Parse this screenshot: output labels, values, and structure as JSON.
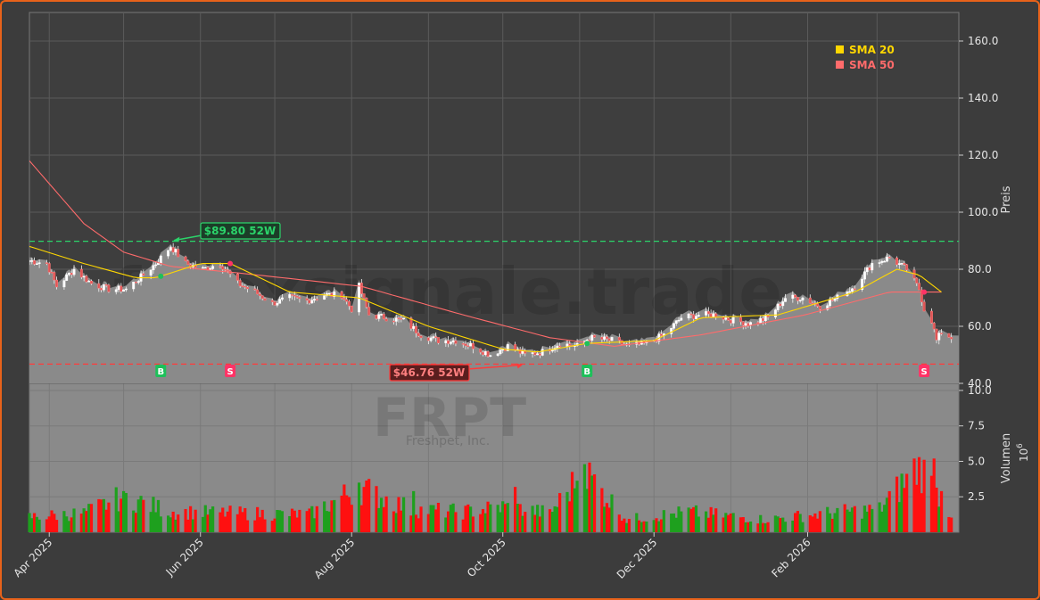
{
  "chart_data": {
    "type": "candlestick",
    "watermark": {
      "line1": "forexsignale.trade",
      "line2": "FRPT",
      "line3": "Freshpet, Inc."
    },
    "price_axis": {
      "label": "Preis",
      "ylim": [
        40,
        170
      ],
      "ticks": [
        "40.0",
        "60.0",
        "80.0",
        "100.0",
        "120.0",
        "140.0",
        "160.0"
      ]
    },
    "volume_axis": {
      "label": "Volumen",
      "exponent_label": "10",
      "exponent_power": "6",
      "ylim": [
        0,
        10.5
      ],
      "ticks": [
        "2.5",
        "5.0",
        "7.5",
        "10.0"
      ]
    },
    "x_axis": {
      "ticks": [
        "Apr 2025",
        "Jun 2025",
        "Aug 2025",
        "Oct 2025",
        "Dec 2025",
        "Feb 2026"
      ]
    },
    "legend": {
      "position": "top-right",
      "sma20": "SMA 20",
      "sma50": "SMA 50",
      "sma20_color": "#ffd700",
      "sma50_color": "#ff6b6b"
    },
    "high_52w": {
      "value": 89.8,
      "label": "$89.80 52W",
      "color": "#2bd46a"
    },
    "low_52w": {
      "value": 46.76,
      "label": "$46.76 52W",
      "color": "#ff3b3b"
    },
    "signals": [
      {
        "type": "buy",
        "label": "B",
        "date": "2025-05-16"
      },
      {
        "type": "sell",
        "label": "S",
        "date": "2025-06-13"
      },
      {
        "type": "buy",
        "label": "B",
        "date": "2025-11-04"
      },
      {
        "type": "sell",
        "label": "S",
        "date": "2026-03-20"
      }
    ],
    "price_keypoints": [
      [
        "2025-03-24",
        83
      ],
      [
        "2025-03-31",
        82
      ],
      [
        "2025-04-04",
        74
      ],
      [
        "2025-04-11",
        80
      ],
      [
        "2025-04-18",
        75
      ],
      [
        "2025-04-25",
        73
      ],
      [
        "2025-05-02",
        73
      ],
      [
        "2025-05-09",
        78
      ],
      [
        "2025-05-14",
        82
      ],
      [
        "2025-05-20",
        88
      ],
      [
        "2025-05-26",
        82
      ],
      [
        "2025-06-02",
        80
      ],
      [
        "2025-06-09",
        82
      ],
      [
        "2025-06-16",
        75
      ],
      [
        "2025-06-23",
        72
      ],
      [
        "2025-06-30",
        68
      ],
      [
        "2025-07-07",
        70
      ],
      [
        "2025-07-14",
        69
      ],
      [
        "2025-07-21",
        71
      ],
      [
        "2025-07-28",
        71
      ],
      [
        "2025-08-01",
        66
      ],
      [
        "2025-08-04",
        74
      ],
      [
        "2025-08-08",
        64
      ],
      [
        "2025-08-15",
        63
      ],
      [
        "2025-08-22",
        62
      ],
      [
        "2025-08-29",
        57
      ],
      [
        "2025-09-05",
        55
      ],
      [
        "2025-09-12",
        55
      ],
      [
        "2025-09-19",
        53
      ],
      [
        "2025-09-26",
        50
      ],
      [
        "2025-10-03",
        53
      ],
      [
        "2025-10-10",
        50
      ],
      [
        "2025-10-17",
        51
      ],
      [
        "2025-10-24",
        54
      ],
      [
        "2025-10-31",
        53
      ],
      [
        "2025-11-05",
        56
      ],
      [
        "2025-11-14",
        55
      ],
      [
        "2025-11-21",
        53
      ],
      [
        "2025-11-28",
        54
      ],
      [
        "2025-12-05",
        57
      ],
      [
        "2025-12-12",
        63
      ],
      [
        "2025-12-19",
        64
      ],
      [
        "2025-12-26",
        64
      ],
      [
        "2026-01-02",
        62
      ],
      [
        "2026-01-09",
        61
      ],
      [
        "2026-01-16",
        63
      ],
      [
        "2026-01-23",
        70
      ],
      [
        "2026-01-30",
        70
      ],
      [
        "2026-02-06",
        67
      ],
      [
        "2026-02-13",
        70
      ],
      [
        "2026-02-20",
        74
      ],
      [
        "2026-02-27",
        82
      ],
      [
        "2026-03-06",
        84
      ],
      [
        "2026-03-13",
        80
      ],
      [
        "2026-03-18",
        73
      ],
      [
        "2026-03-20",
        66
      ],
      [
        "2026-03-23",
        62
      ],
      [
        "2026-03-25",
        55
      ],
      [
        "2026-03-27",
        58
      ],
      [
        "2026-03-31",
        56
      ]
    ],
    "sma20_keypoints": [
      [
        "2025-03-24",
        88
      ],
      [
        "2025-04-15",
        82
      ],
      [
        "2025-05-06",
        77
      ],
      [
        "2025-05-14",
        77
      ],
      [
        "2025-06-01",
        82
      ],
      [
        "2025-06-13",
        82
      ],
      [
        "2025-07-07",
        72
      ],
      [
        "2025-08-04",
        70
      ],
      [
        "2025-09-01",
        60
      ],
      [
        "2025-10-01",
        52
      ],
      [
        "2025-10-15",
        51
      ],
      [
        "2025-11-04",
        54
      ],
      [
        "2025-12-01",
        55
      ],
      [
        "2025-12-20",
        63
      ],
      [
        "2026-01-20",
        64
      ],
      [
        "2026-02-20",
        72
      ],
      [
        "2026-03-09",
        80
      ],
      [
        "2026-03-18",
        78
      ],
      [
        "2026-03-27",
        72
      ]
    ],
    "sma50_keypoints": [
      [
        "2025-03-24",
        118
      ],
      [
        "2025-04-15",
        96
      ],
      [
        "2025-05-01",
        86
      ],
      [
        "2025-05-20",
        81
      ],
      [
        "2025-06-13",
        79
      ],
      [
        "2025-07-15",
        76
      ],
      [
        "2025-08-05",
        74
      ],
      [
        "2025-09-15",
        64
      ],
      [
        "2025-10-20",
        56
      ],
      [
        "2025-11-15",
        53
      ],
      [
        "2025-12-20",
        57
      ],
      [
        "2026-01-31",
        64
      ],
      [
        "2026-03-06",
        72
      ],
      [
        "2026-03-27",
        72
      ]
    ],
    "volume_keypoints_millions": [
      [
        "2025-03-24",
        1.2
      ],
      [
        "2025-04-15",
        1.5
      ],
      [
        "2025-05-01",
        2.8
      ],
      [
        "2025-05-20",
        1.6
      ],
      [
        "2025-06-15",
        1.5
      ],
      [
        "2025-07-15",
        1.4
      ],
      [
        "2025-08-04",
        3.5
      ],
      [
        "2025-08-25",
        1.8
      ],
      [
        "2025-09-15",
        1.6
      ],
      [
        "2025-10-01",
        2.0
      ],
      [
        "2025-10-20",
        1.5
      ],
      [
        "2025-11-03",
        4.8
      ],
      [
        "2025-11-20",
        1.0
      ],
      [
        "2025-12-15",
        1.6
      ],
      [
        "2026-01-15",
        1.0
      ],
      [
        "2026-02-15",
        1.6
      ],
      [
        "2026-03-02",
        1.8
      ],
      [
        "2026-03-18",
        5.2
      ],
      [
        "2026-03-31",
        1.4
      ]
    ],
    "volume_spikes_millions": [
      [
        "2025-05-01",
        2.9
      ],
      [
        "2025-08-04",
        3.5
      ],
      [
        "2025-08-26",
        2.9
      ],
      [
        "2025-10-06",
        3.2
      ],
      [
        "2025-10-30",
        3.1
      ],
      [
        "2025-11-03",
        4.8
      ],
      [
        "2026-03-16",
        5.2
      ],
      [
        "2026-03-24",
        5.2
      ],
      [
        "2026-03-27",
        2.9
      ]
    ]
  }
}
